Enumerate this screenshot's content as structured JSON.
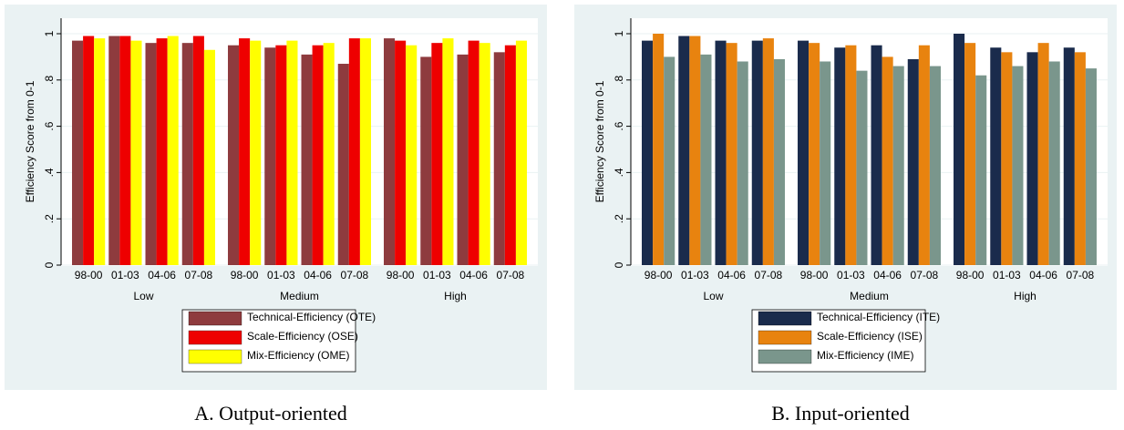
{
  "chart_data": [
    {
      "type": "bar",
      "caption": "A. Output-oriented",
      "ylabel": "Efficiency Score from 0-1",
      "groups": [
        "Low",
        "Medium",
        "High"
      ],
      "categories": [
        "98-00",
        "01-03",
        "04-06",
        "07-08",
        "98-00",
        "01-03",
        "04-06",
        "07-08",
        "98-00",
        "01-03",
        "04-06",
        "07-08"
      ],
      "series": [
        {
          "name": "Technical-Efficiency (OTE)",
          "color": "#8e3b3e",
          "values": [
            0.97,
            0.99,
            0.96,
            0.96,
            0.95,
            0.94,
            0.91,
            0.87,
            0.98,
            0.9,
            0.91,
            0.92
          ]
        },
        {
          "name": "Scale-Efficiency (OSE)",
          "color": "#ee0000",
          "values": [
            0.99,
            0.99,
            0.98,
            0.99,
            0.98,
            0.95,
            0.95,
            0.98,
            0.97,
            0.96,
            0.97,
            0.95
          ]
        },
        {
          "name": "Mix-Efficiency (OME)",
          "color": "#ffff00",
          "values": [
            0.98,
            0.97,
            0.99,
            0.93,
            0.97,
            0.97,
            0.96,
            0.98,
            0.95,
            0.98,
            0.96,
            0.97
          ]
        }
      ],
      "ylim": [
        0,
        1
      ],
      "yticks": [
        0,
        {
          "value": 0.2,
          "label": ".2"
        },
        {
          "value": 0.4,
          "label": ".4"
        },
        {
          "value": 0.6,
          "label": ".6"
        },
        {
          "value": 0.8,
          "label": ".8"
        },
        1
      ],
      "grid": true
    },
    {
      "type": "bar",
      "caption": "B. Input-oriented",
      "ylabel": "Efficiency Score from 0-1",
      "groups": [
        "Low",
        "Medium",
        "High"
      ],
      "categories": [
        "98-00",
        "01-03",
        "04-06",
        "07-08",
        "98-00",
        "01-03",
        "04-06",
        "07-08",
        "98-00",
        "01-03",
        "04-06",
        "07-08"
      ],
      "series": [
        {
          "name": "Technical-Efficiency (ITE)",
          "color": "#1a2b4c",
          "values": [
            0.97,
            0.99,
            0.97,
            0.97,
            0.97,
            0.94,
            0.95,
            0.89,
            1.0,
            0.94,
            0.92,
            0.94
          ]
        },
        {
          "name": "Scale-Efficiency (ISE)",
          "color": "#e8830f",
          "values": [
            1.0,
            0.99,
            0.96,
            0.98,
            0.96,
            0.95,
            0.9,
            0.95,
            0.96,
            0.92,
            0.96,
            0.92
          ]
        },
        {
          "name": "Mix-Efficiency (IME)",
          "color": "#7a968c",
          "values": [
            0.9,
            0.91,
            0.88,
            0.89,
            0.88,
            0.84,
            0.86,
            0.86,
            0.82,
            0.86,
            0.88,
            0.85
          ]
        }
      ],
      "ylim": [
        0,
        1
      ],
      "yticks": [
        0,
        {
          "value": 0.2,
          "label": ".2"
        },
        {
          "value": 0.4,
          "label": ".4"
        },
        {
          "value": 0.6,
          "label": ".6"
        },
        {
          "value": 0.8,
          "label": ".8"
        },
        1
      ],
      "grid": true
    }
  ]
}
